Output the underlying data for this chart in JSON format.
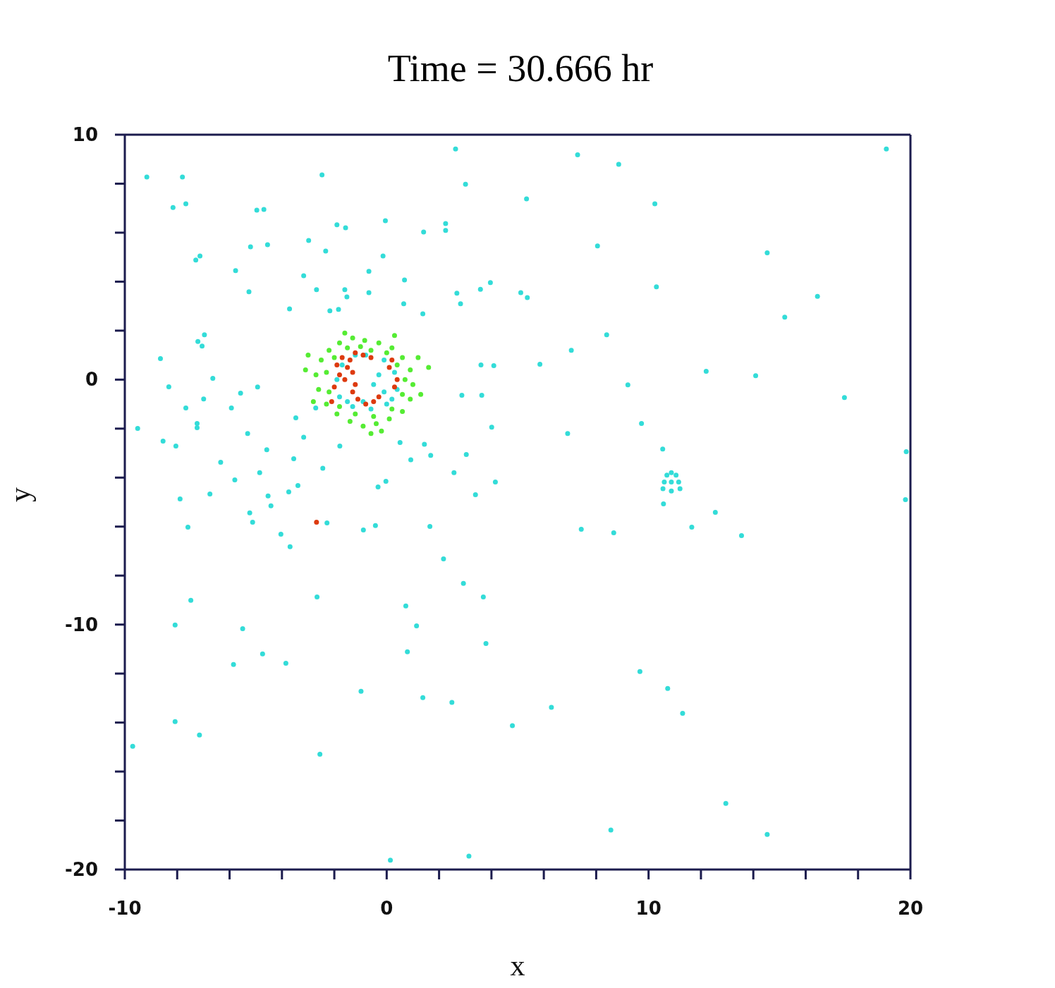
{
  "chart_data": {
    "type": "scatter",
    "title": "Time = 30.666 hr",
    "xlabel": "x",
    "ylabel": "y",
    "xlim": [
      -10,
      20
    ],
    "ylim": [
      -20,
      10
    ],
    "xticks": [
      -10,
      {
        "value": -8,
        "label": null
      },
      {
        "value": -6,
        "label": null
      },
      {
        "value": -4,
        "label": null
      },
      {
        "value": -2,
        "label": null
      },
      0,
      {
        "value": 2,
        "label": null
      },
      {
        "value": 4,
        "label": null
      },
      {
        "value": 6,
        "label": null
      },
      {
        "value": 8,
        "label": null
      },
      10,
      {
        "value": 12,
        "label": null
      },
      {
        "value": 14,
        "label": null
      },
      {
        "value": 16,
        "label": null
      },
      {
        "value": 18,
        "label": null
      },
      20
    ],
    "yticks": [
      -20,
      {
        "value": -18,
        "label": null
      },
      {
        "value": -16,
        "label": null
      },
      {
        "value": -14,
        "label": null
      },
      {
        "value": -12,
        "label": null
      },
      -10,
      {
        "value": -8,
        "label": null
      },
      {
        "value": -6,
        "label": null
      },
      {
        "value": -4,
        "label": null
      },
      {
        "value": -2,
        "label": null
      },
      0,
      {
        "value": 2,
        "label": null
      },
      {
        "value": 4,
        "label": null
      },
      {
        "value": 6,
        "label": null
      },
      {
        "value": 8,
        "label": null
      },
      10
    ],
    "grid": false,
    "legend": false,
    "marker": "circle",
    "series": [
      {
        "type": "scatter",
        "color": "#33dcd8",
        "x": [
          -9.16,
          -7.8,
          -8.16,
          -7.67,
          -7.29,
          -7.13,
          -4.96,
          -4.69,
          -2.47,
          -5.2,
          -4.55,
          -5.77,
          -5.26,
          -2.98,
          -2.33,
          -1.9,
          -1.57,
          -0.05,
          -0.14,
          -0.68,
          1.41,
          2.25,
          2.25,
          2.63,
          3.01,
          5.34,
          7.29,
          8.86,
          10.24,
          8.05,
          10.3,
          14.53,
          16.45,
          15.2,
          19.08,
          5.12,
          5.37,
          3.58,
          3.96,
          2.68,
          2.82,
          -3.71,
          -3.17,
          -2.68,
          -2.17,
          -1.84,
          -1.6,
          -1.52,
          -0.68,
          0.68,
          1.38,
          0.65,
          -7.21,
          -6.96,
          -7.05,
          -8.64,
          -8.32,
          -6.64,
          -7.67,
          -9.51,
          -8.54,
          -8.05,
          -7.24,
          -7.24,
          -6.99,
          -6.34,
          -6.75,
          -7.89,
          -7.59,
          -7.48,
          -8.08,
          -5.85,
          -5.5,
          -4.74,
          -3.85,
          -8.08,
          -9.7,
          -7.15,
          -2.55,
          -5.58,
          -4.93,
          -5.93,
          -5.31,
          -4.58,
          -4.85,
          -5.8,
          -4.53,
          -5.23,
          -5.12,
          -4.04,
          -3.69,
          -4.42,
          -3.74,
          -3.39,
          -3.55,
          -3.47,
          -2.71,
          -3.17,
          -2.44,
          -2.28,
          -1.79,
          -0.89,
          -0.43,
          -0.33,
          -0.03,
          0.51,
          0.92,
          1.44,
          1.65,
          1.68,
          2.57,
          3.39,
          4.15,
          3.04,
          4.01,
          2.87,
          3.6,
          4.09,
          3.63,
          2.17,
          2.93,
          3.69,
          0.73,
          1.14,
          0.79,
          -2.66,
          -0.98,
          1.38,
          2.49,
          3.79,
          4.8,
          6.29,
          9.67,
          10.73,
          11.3,
          12.95,
          14.53,
          8.56,
          3.14,
          0.14,
          6.91,
          7.43,
          8.67,
          9.73,
          10.54,
          10.57,
          11.65,
          12.55,
          13.55,
          9.21,
          8.4,
          7.05,
          5.85,
          12.2,
          14.09,
          17.48,
          19.84,
          19.81,
          10.87,
          10.6,
          11.15,
          10.7,
          11.05,
          10.55,
          11.2,
          10.87,
          10.87,
          -0.8,
          -0.1,
          0.3,
          0.4,
          0.0,
          -0.6,
          -1.3,
          -1.8,
          -1.9,
          -1.7,
          -1.2,
          -0.3,
          -0.5,
          -0.1,
          -0.9,
          -1.5,
          0.2
        ],
        "values": [
          8.27,
          8.27,
          7.03,
          7.18,
          4.88,
          5.05,
          6.92,
          6.95,
          8.36,
          5.42,
          5.51,
          4.45,
          3.59,
          5.68,
          5.25,
          6.32,
          6.2,
          6.49,
          5.05,
          4.42,
          6.03,
          6.37,
          6.09,
          9.42,
          7.98,
          7.38,
          9.18,
          8.79,
          7.18,
          5.46,
          3.79,
          5.18,
          3.4,
          2.55,
          9.42,
          3.55,
          3.35,
          3.69,
          3.96,
          3.53,
          3.1,
          2.89,
          4.24,
          3.67,
          2.81,
          2.87,
          3.67,
          3.38,
          3.55,
          4.07,
          2.69,
          3.1,
          1.56,
          1.83,
          1.37,
          0.86,
          -0.29,
          0.05,
          -1.16,
          -1.99,
          -2.51,
          -2.71,
          -1.79,
          -1.96,
          -0.79,
          -3.37,
          -4.67,
          -4.87,
          -6.02,
          -9.01,
          -10.02,
          -11.63,
          -10.17,
          -11.2,
          -11.58,
          -13.96,
          -14.97,
          -14.51,
          -15.29,
          -0.55,
          -0.3,
          -1.16,
          -2.2,
          -2.86,
          -3.8,
          -4.09,
          -4.75,
          -5.44,
          -5.82,
          -6.31,
          -6.82,
          -5.15,
          -4.58,
          -4.32,
          -3.23,
          -1.56,
          -1.16,
          -2.35,
          -3.62,
          -5.85,
          -2.71,
          -6.14,
          -5.96,
          -4.38,
          -4.15,
          -2.57,
          -3.27,
          -2.64,
          -5.99,
          -3.09,
          -3.8,
          -4.7,
          -4.18,
          -3.06,
          -1.94,
          -0.64,
          0.6,
          0.57,
          -0.64,
          -7.32,
          -8.32,
          -8.87,
          -9.24,
          -10.05,
          -11.11,
          -8.87,
          -12.72,
          -12.98,
          -13.18,
          -10.77,
          -14.13,
          -13.38,
          -11.92,
          -12.61,
          -13.62,
          -17.3,
          -18.57,
          -18.39,
          -19.45,
          -19.62,
          -2.2,
          -6.11,
          -6.25,
          -1.79,
          -2.83,
          -5.07,
          -6.02,
          -5.42,
          -6.37,
          -0.21,
          1.83,
          1.2,
          0.63,
          0.34,
          0.16,
          -0.73,
          -2.94,
          -4.9,
          -4.18,
          -4.18,
          -4.18,
          -3.9,
          -3.9,
          -4.45,
          -4.45,
          -3.8,
          -4.55,
          1.0,
          0.8,
          0.3,
          -0.4,
          -1.0,
          -1.2,
          -1.1,
          -0.7,
          0.0,
          0.6,
          1.0,
          0.2,
          -0.2,
          -0.5,
          -0.9,
          -0.9,
          -0.8
        ]
      },
      {
        "type": "scatter",
        "color": "#55ec33",
        "x": [
          -0.84,
          -0.3,
          0.2,
          0.6,
          0.9,
          1.0,
          0.9,
          0.6,
          0.1,
          -0.4,
          -0.9,
          -1.4,
          -1.9,
          -2.3,
          -2.6,
          -2.7,
          -2.5,
          -2.2,
          -1.8,
          -1.3,
          -0.6,
          0.0,
          0.4,
          0.7,
          0.6,
          0.2,
          -0.5,
          -1.2,
          -1.8,
          -2.2,
          -2.3,
          -2.0,
          -1.5,
          -1.0,
          -3.0,
          -2.8,
          1.2,
          1.3,
          -0.2,
          -1.6,
          0.3,
          -3.1,
          1.6,
          -0.6
        ],
        "values": [
          1.6,
          1.5,
          1.3,
          0.9,
          0.4,
          -0.2,
          -0.8,
          -1.3,
          -1.6,
          -1.8,
          -1.9,
          -1.7,
          -1.4,
          -1.0,
          -0.4,
          0.2,
          0.8,
          1.2,
          1.5,
          1.7,
          1.2,
          1.1,
          0.6,
          0.0,
          -0.6,
          -1.2,
          -1.5,
          -1.4,
          -1.1,
          -0.5,
          0.3,
          0.9,
          1.3,
          1.35,
          1.0,
          -0.9,
          0.9,
          -0.6,
          -2.1,
          1.9,
          1.8,
          0.4,
          0.5,
          -2.2
        ]
      },
      {
        "type": "scatter",
        "color": "#dd3a0e",
        "x": [
          -1.9,
          -1.7,
          -1.5,
          -1.8,
          -1.4,
          -1.2,
          -1.6,
          -2.0,
          -1.3,
          -0.9,
          -0.6,
          -1.3,
          -1.1,
          -0.8,
          -0.5,
          -0.3,
          -1.2,
          0.3,
          0.4,
          0.1,
          0.2,
          -2.1,
          -2.68
        ],
        "values": [
          0.6,
          0.9,
          0.5,
          0.2,
          0.8,
          1.1,
          0.0,
          -0.3,
          0.3,
          1.0,
          0.9,
          -0.5,
          -0.8,
          -1.0,
          -0.9,
          -0.7,
          -0.2,
          -0.3,
          0.0,
          0.5,
          0.8,
          -0.9,
          -5.82
        ]
      }
    ]
  }
}
